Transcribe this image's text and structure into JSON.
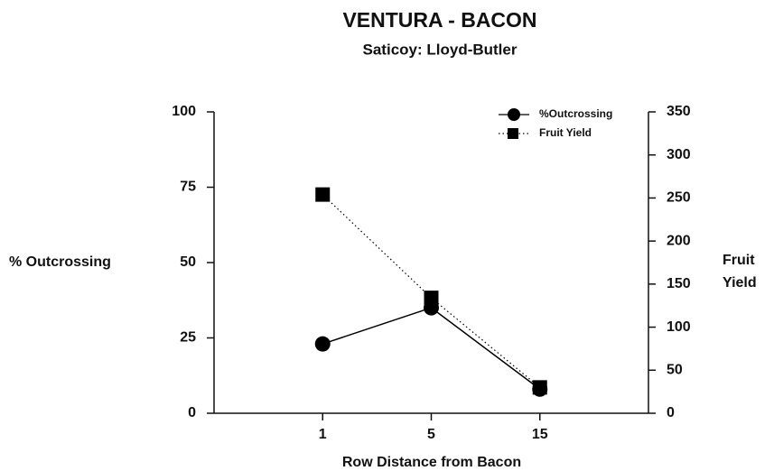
{
  "chart_data": {
    "type": "line",
    "title": "VENTURA - BACON",
    "subtitle": "Saticoy: Lloyd-Butler",
    "x_label": "Row Distance from Bacon",
    "y_label": "% Outcrossing",
    "y2_label": "Fruit Yield",
    "categories": [
      "1",
      "5",
      "15"
    ],
    "series": [
      {
        "name": "%Outcrossing",
        "color": "#000000",
        "marker": "circle",
        "linestyle": "solid",
        "values": [
          23,
          35,
          8
        ]
      },
      {
        "name": "Fruit Yield",
        "color": "#000000",
        "marker": "square",
        "linestyle": "dotted",
        "axis": "y2",
        "values": [
          254,
          134,
          30
        ]
      }
    ],
    "ylim": [
      0,
      100
    ],
    "yticks": [
      0,
      25,
      50,
      75,
      100
    ],
    "y2lim": [
      0,
      350
    ],
    "y2ticks": [
      0,
      50,
      100,
      150,
      200,
      250,
      300,
      350
    ],
    "legend": "upper right",
    "grid": false
  }
}
